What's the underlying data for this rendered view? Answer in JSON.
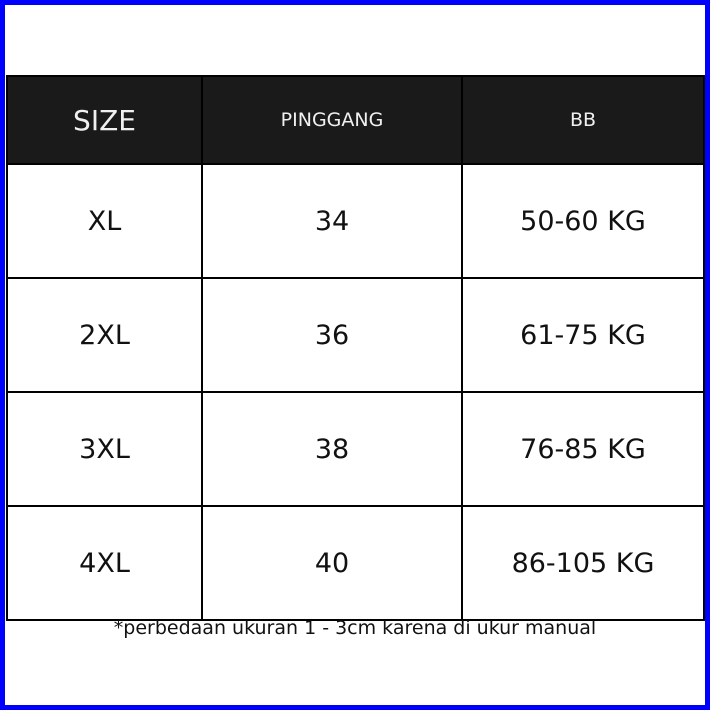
{
  "colors": {
    "frame": "#0000ff",
    "header_bg": "#1a1a1a"
  },
  "table": {
    "headers": [
      "SIZE",
      "PINGGANG",
      "BB"
    ],
    "rows": [
      [
        "XL",
        "34",
        "50-60 KG"
      ],
      [
        "2XL",
        "36",
        "61-75 KG"
      ],
      [
        "3XL",
        "38",
        "76-85 KG"
      ],
      [
        "4XL",
        "40",
        "86-105 KG"
      ]
    ]
  },
  "note": "*perbedaan ukuran 1 - 3cm karena di ukur manual"
}
